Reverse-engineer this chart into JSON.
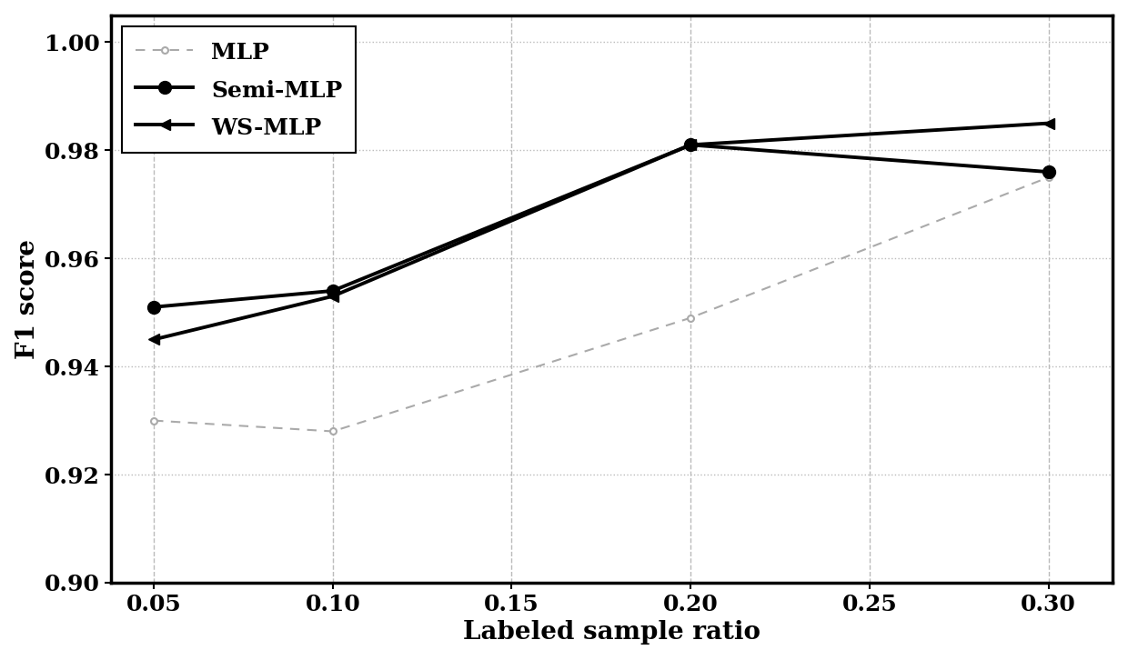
{
  "x": [
    0.05,
    0.1,
    0.2,
    0.3
  ],
  "mlp": [
    0.93,
    0.928,
    0.949,
    0.975
  ],
  "semi_mlp": [
    0.951,
    0.954,
    0.981,
    0.976
  ],
  "ws_mlp": [
    0.945,
    0.953,
    0.981,
    0.985
  ],
  "xlabel": "Labeled sample ratio",
  "ylabel": "F1 score",
  "ylim": [
    0.9,
    1.005
  ],
  "xlim": [
    0.038,
    0.318
  ],
  "xticks": [
    0.05,
    0.1,
    0.15,
    0.2,
    0.25,
    0.3
  ],
  "yticks": [
    0.9,
    0.92,
    0.94,
    0.96,
    0.98,
    1.0
  ],
  "legend_labels": [
    "MLP",
    "Semi-MLP",
    "WS-MLP"
  ],
  "line_color_mlp": "#aaaaaa",
  "line_color_semi": "#000000",
  "line_color_ws": "#000000",
  "linewidth_mlp": 1.5,
  "linewidth_semi": 2.8,
  "linewidth_ws": 2.8,
  "font_size_ticks": 18,
  "font_size_labels": 20,
  "font_size_legend": 18
}
